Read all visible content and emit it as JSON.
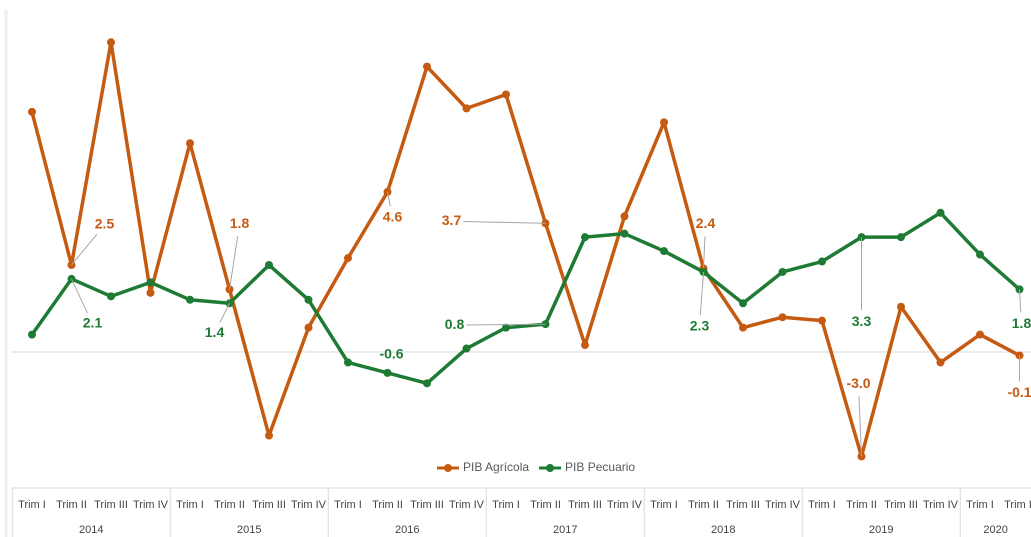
{
  "chart_data": {
    "type": "line",
    "categories": [
      "Trim I",
      "Trim II",
      "Trim III",
      "Trim IV",
      "Trim I",
      "Trim II",
      "Trim III",
      "Trim IV",
      "Trim I",
      "Trim II",
      "Trim III",
      "Trim IV",
      "Trim I",
      "Trim II",
      "Trim III",
      "Trim IV",
      "Trim I",
      "Trim II",
      "Trim III",
      "Trim IV",
      "Trim I",
      "Trim II",
      "Trim III",
      "Trim IV",
      "Trim I",
      "Trim II"
    ],
    "category_groups": [
      "2014",
      "2015",
      "2016",
      "2017",
      "2018",
      "2019",
      "2020"
    ],
    "series": [
      {
        "name": "PIB Agrícola",
        "color": "#c55a11",
        "values": [
          6.9,
          2.5,
          8.9,
          1.7,
          6.0,
          1.8,
          -2.4,
          0.7,
          2.7,
          4.6,
          8.2,
          7.0,
          7.4,
          3.7,
          0.2,
          3.9,
          6.6,
          2.4,
          0.7,
          1.0,
          0.9,
          -3.0,
          1.3,
          -0.3,
          0.5,
          -0.1
        ],
        "value_labels": [
          null,
          "2.5",
          null,
          null,
          null,
          "1.8",
          null,
          null,
          null,
          "4.6",
          null,
          null,
          null,
          "3.7",
          null,
          null,
          null,
          "2.4",
          null,
          null,
          null,
          "-3.0",
          null,
          null,
          null,
          "-0.1"
        ]
      },
      {
        "name": "PIB Pecuario",
        "color": "#1e7b34",
        "values": [
          0.5,
          2.1,
          1.6,
          2.0,
          1.5,
          1.4,
          2.5,
          1.5,
          -0.3,
          -0.6,
          -0.9,
          0.1,
          0.7,
          0.8,
          3.3,
          3.4,
          2.9,
          2.3,
          1.4,
          2.3,
          2.6,
          3.3,
          3.3,
          4.0,
          2.8,
          1.8
        ],
        "value_labels": [
          null,
          "2.1",
          null,
          null,
          null,
          "1.4",
          null,
          null,
          null,
          "-0.6",
          null,
          null,
          null,
          "0.8",
          null,
          null,
          null,
          "2.3",
          null,
          null,
          null,
          "3.3",
          null,
          null,
          null,
          "1.8"
        ]
      }
    ],
    "ylim": [
      -3.5,
      9.5
    ]
  }
}
